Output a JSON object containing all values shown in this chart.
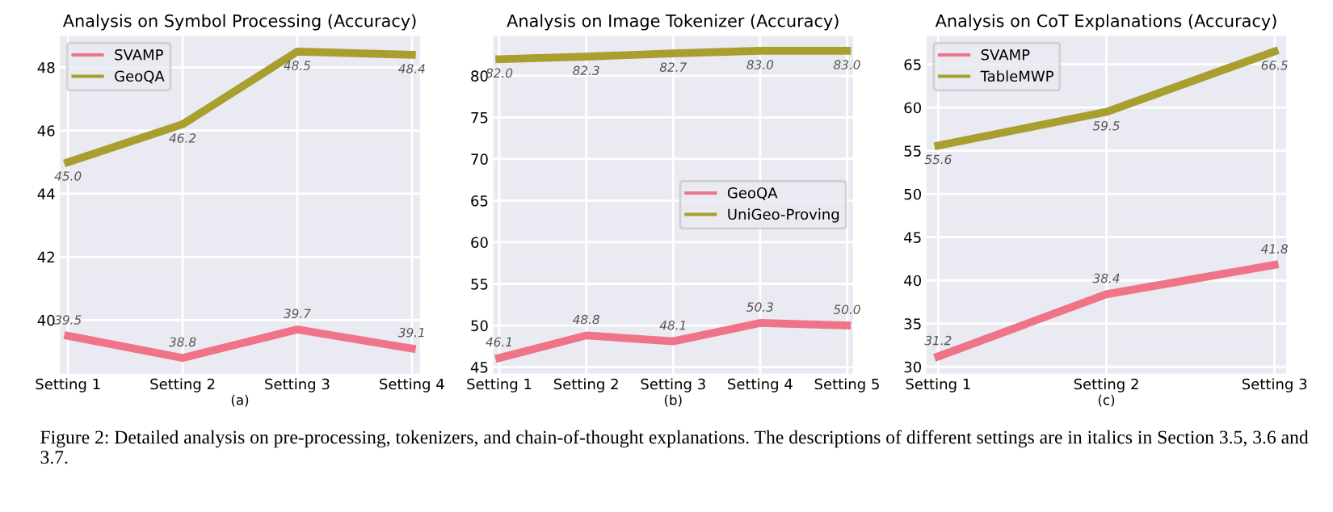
{
  "chart_data": [
    {
      "type": "line",
      "title": "Analysis on Symbol Processing (Accuracy)",
      "xlabel": "(a)",
      "categories": [
        "Setting 1",
        "Setting 2",
        "Setting 3",
        "Setting 4"
      ],
      "series": [
        {
          "name": "SVAMP",
          "color": "#f07488",
          "values": [
            39.5,
            38.8,
            39.7,
            39.1
          ],
          "value_labels": [
            "39.5",
            "38.8",
            "39.7",
            "39.1"
          ]
        },
        {
          "name": "GeoQA",
          "color": "#a89f2e",
          "values": [
            45.0,
            46.2,
            48.5,
            48.4
          ],
          "value_labels": [
            "45.0",
            "46.2",
            "48.5",
            "48.4"
          ]
        }
      ],
      "ylim": [
        38.3,
        49.0
      ],
      "yticks": [
        40,
        42,
        44,
        46,
        48
      ],
      "grid": true,
      "legend": "top left",
      "annotations": [
        "Figure 2: Detailed analysis on pre-processing, tokenizers, and chain-of-thought explanations. The descriptions of different settings are in italics in Section 3.5, 3.6 and 3.7."
      ]
    },
    {
      "type": "line",
      "title": "Analysis on Image Tokenizer (Accuracy)",
      "xlabel": "(b)",
      "categories": [
        "Setting 1",
        "Setting 2",
        "Setting 3",
        "Setting 4",
        "Setting 5"
      ],
      "series": [
        {
          "name": "GeoQA",
          "color": "#f07488",
          "values": [
            46.1,
            48.8,
            48.1,
            50.3,
            50.0
          ],
          "value_labels": [
            "46.1",
            "48.8",
            "48.1",
            "50.3",
            "50.0"
          ]
        },
        {
          "name": "UniGeo-Proving",
          "color": "#a89f2e",
          "values": [
            82.0,
            82.3,
            82.7,
            83.0,
            83.0
          ],
          "value_labels": [
            "82.0",
            "82.3",
            "82.7",
            "83.0",
            "83.0"
          ]
        }
      ],
      "ylim": [
        44.2,
        84.8
      ],
      "yticks": [
        45,
        50,
        55,
        60,
        65,
        70,
        75,
        80
      ],
      "grid": true,
      "legend": "right"
    },
    {
      "type": "line",
      "title": "Analysis on CoT Explanations (Accuracy)",
      "xlabel": "(c)",
      "categories": [
        "Setting 1",
        "Setting 2",
        "Setting 3"
      ],
      "series": [
        {
          "name": "SVAMP",
          "color": "#f07488",
          "values": [
            31.2,
            38.4,
            41.8
          ],
          "value_labels": [
            "31.2",
            "38.4",
            "41.8"
          ]
        },
        {
          "name": "TableMWP",
          "color": "#a89f2e",
          "values": [
            55.6,
            59.5,
            66.5
          ],
          "value_labels": [
            "55.6",
            "59.5",
            "66.5"
          ]
        }
      ],
      "ylim": [
        29.2,
        68.3
      ],
      "yticks": [
        30,
        35,
        40,
        45,
        50,
        55,
        60,
        65
      ],
      "grid": true,
      "legend": "top left"
    }
  ]
}
